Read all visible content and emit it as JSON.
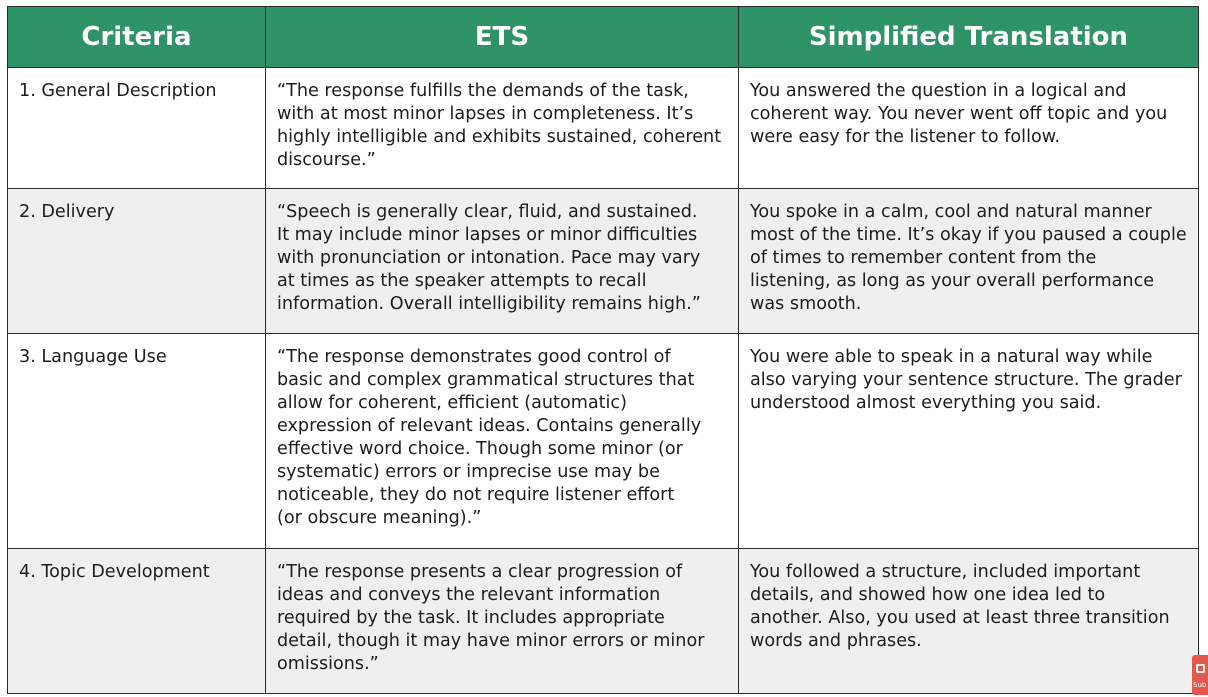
{
  "table": {
    "headers": [
      "Criteria",
      "ETS",
      "Simplified Translation"
    ],
    "rows": [
      {
        "criteria": "1. General Description",
        "ets": "“The response fulfills the demands of the task,\nwith at most minor lapses in completeness. It’s\nhighly intelligible and exhibits sustained, coherent\ndiscourse.”",
        "simplified": "You answered the question in a logical and\ncoherent way. You never went off topic and you\nwere easy for the listener to follow."
      },
      {
        "criteria": "2. Delivery",
        "ets": "“Speech is generally clear, fluid, and sustained.\nIt may include minor lapses or minor difficulties\nwith pronunciation or intonation. Pace may vary\nat times as the speaker attempts to recall\ninformation. Overall intelligibility remains high.”",
        "simplified": "You spoke in a calm, cool and natural manner\nmost of the time. It’s okay if you paused a couple\nof times to remember content from the\nlistening, as long as your overall performance\nwas smooth."
      },
      {
        "criteria": "3. Language Use",
        "ets": "“The response demonstrates good control of\nbasic and complex grammatical structures that\nallow for coherent, efficient (automatic)\nexpression of relevant ideas. Contains generally\neffective word choice. Though some minor (or\nsystematic) errors or imprecise use may be\nnoticeable, they do not require listener effort\n(or obscure meaning).”",
        "simplified": "You were able to speak in a natural way while\nalso varying your sentence structure. The grader\nunderstood almost everything you said."
      },
      {
        "criteria": "4. Topic Development",
        "ets": "“The response presents a clear progression of\nideas and conveys the relevant information\nrequired by the task. It includes appropriate\ndetail, though it may have minor errors or minor\nomissions.”",
        "simplified": "You followed a structure, included important\ndetails, and showed how one idea led to\nanother. Also, you used at least three transition\nwords and phrases."
      }
    ]
  },
  "badge": {
    "label": "Sub",
    "icon": "subscribe-icon"
  },
  "colors": {
    "header_bg": "#2e9367",
    "header_text": "#ffffff",
    "alt_row_bg": "#efefef",
    "border": "#2b2b2b",
    "badge_bg": "#e5564d"
  }
}
